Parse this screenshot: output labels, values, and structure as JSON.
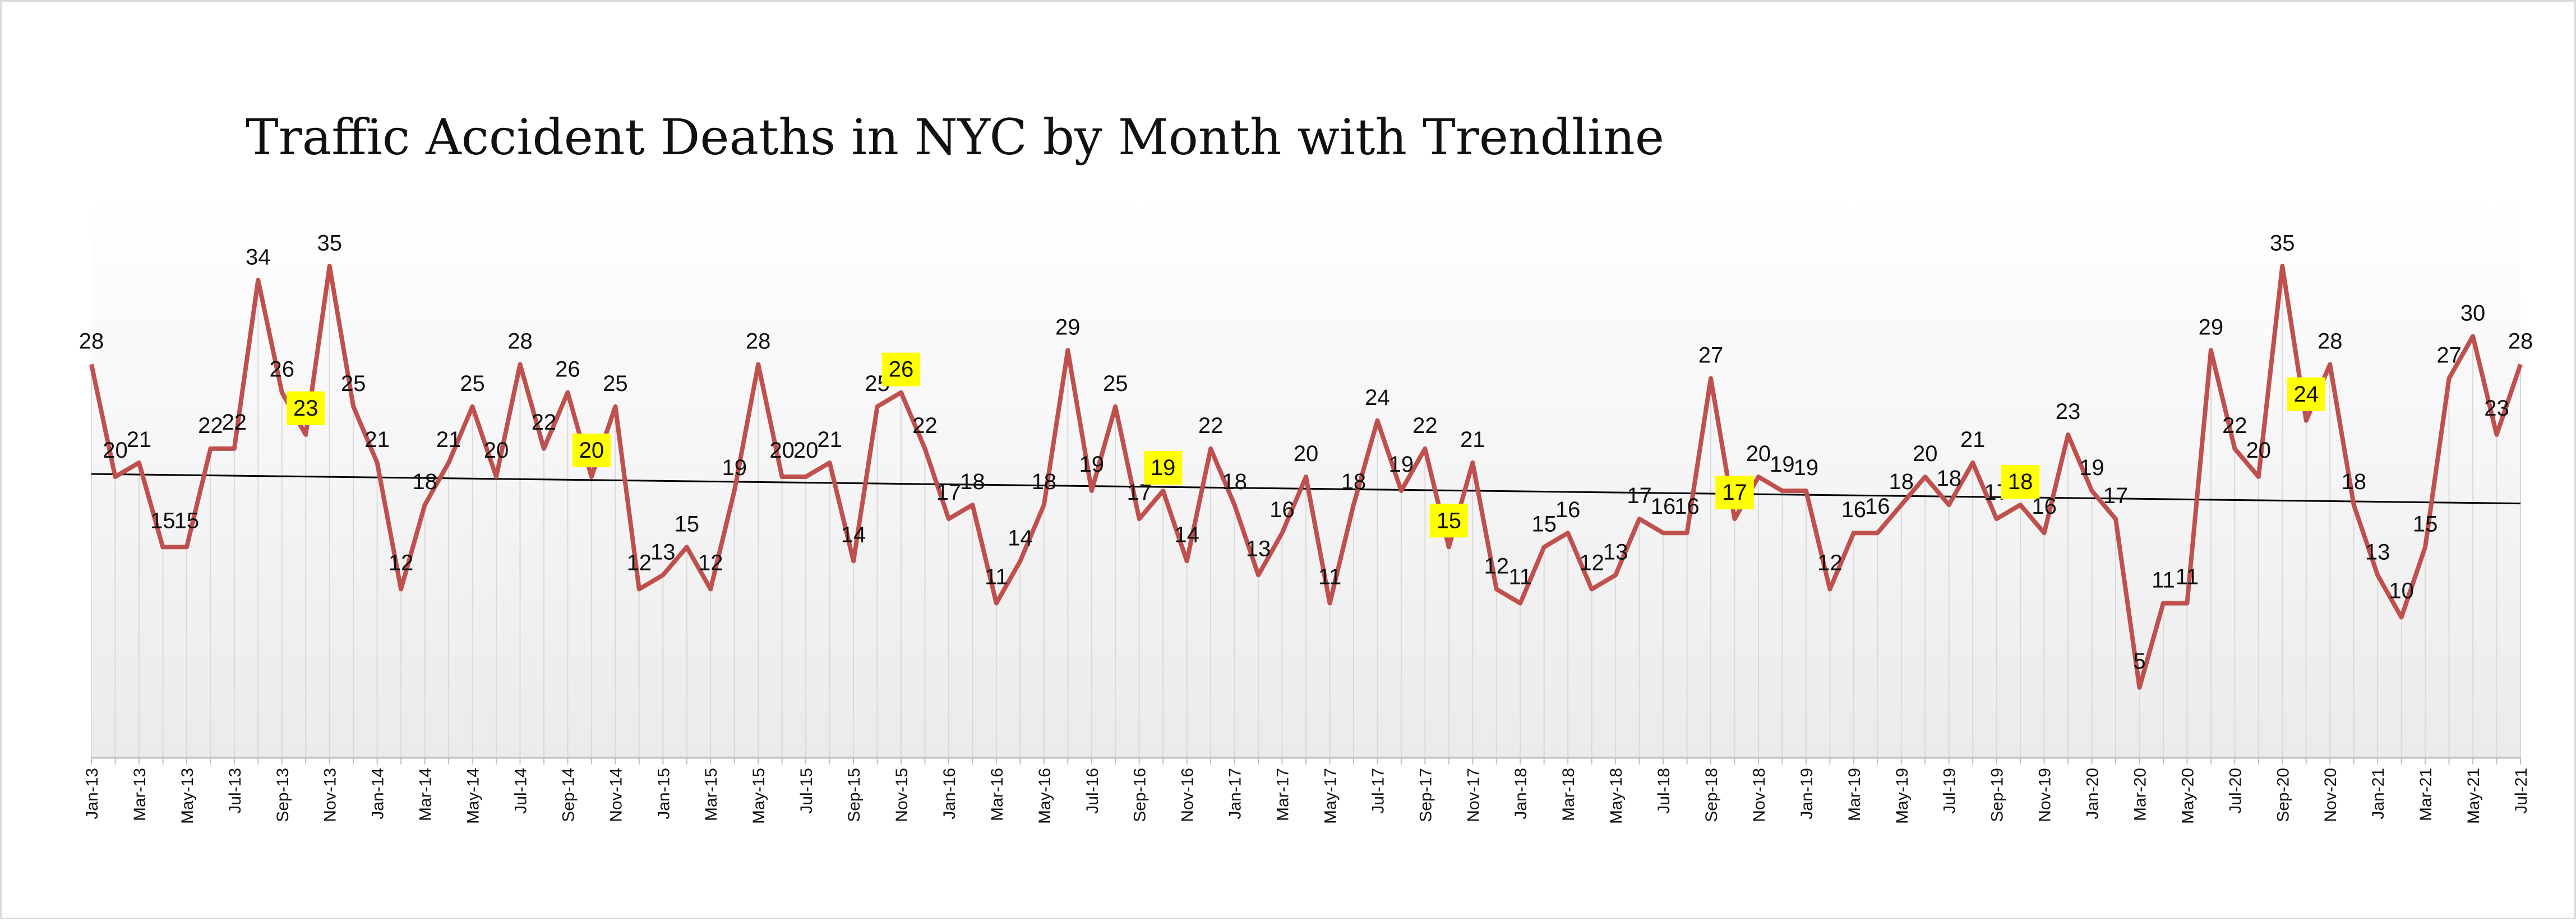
{
  "chart_data": {
    "type": "line",
    "title": "Traffic Accident Deaths in NYC  by Month with  Trendline",
    "xlabel": "",
    "ylabel": "",
    "ylim": [
      0,
      40
    ],
    "grid": false,
    "x": [
      "Jan-13",
      "Feb-13",
      "Mar-13",
      "Apr-13",
      "May-13",
      "Jun-13",
      "Jul-13",
      "Aug-13",
      "Sep-13",
      "Oct-13",
      "Nov-13",
      "Dec-13",
      "Jan-14",
      "Feb-14",
      "Mar-14",
      "Apr-14",
      "May-14",
      "Jun-14",
      "Jul-14",
      "Aug-14",
      "Sep-14",
      "Oct-14",
      "Nov-14",
      "Dec-14",
      "Jan-15",
      "Feb-15",
      "Mar-15",
      "Apr-15",
      "May-15",
      "Jun-15",
      "Jul-15",
      "Aug-15",
      "Sep-15",
      "Oct-15",
      "Nov-15",
      "Dec-15",
      "Jan-16",
      "Feb-16",
      "Mar-16",
      "Apr-16",
      "May-16",
      "Jun-16",
      "Jul-16",
      "Aug-16",
      "Sep-16",
      "Oct-16",
      "Nov-16",
      "Dec-16",
      "Jan-17",
      "Feb-17",
      "Mar-17",
      "Apr-17",
      "May-17",
      "Jun-17",
      "Jul-17",
      "Aug-17",
      "Sep-17",
      "Oct-17",
      "Nov-17",
      "Dec-17",
      "Jan-18",
      "Feb-18",
      "Mar-18",
      "Apr-18",
      "May-18",
      "Jun-18",
      "Jul-18",
      "Aug-18",
      "Sep-18",
      "Oct-18",
      "Nov-18",
      "Dec-18",
      "Jan-19",
      "Feb-19",
      "Mar-19",
      "Apr-19",
      "May-19",
      "Jun-19",
      "Jul-19",
      "Aug-19",
      "Sep-19",
      "Oct-19",
      "Nov-19",
      "Dec-19",
      "Jan-20",
      "Feb-20",
      "Mar-20",
      "Apr-20",
      "May-20",
      "Jun-20",
      "Jul-20",
      "Aug-20",
      "Sep-20",
      "Oct-20",
      "Nov-20",
      "Dec-20",
      "Jan-21",
      "Feb-21",
      "Mar-21",
      "Apr-21",
      "May-21",
      "Jun-21",
      "Jul-21"
    ],
    "tick_labels": [
      "Jan-13",
      "Mar-13",
      "May-13",
      "Jul-13",
      "Sep-13",
      "Nov-13",
      "Jan-14",
      "Mar-14",
      "May-14",
      "Jul-14",
      "Sep-14",
      "Nov-14",
      "Jan-15",
      "Mar-15",
      "May-15",
      "Jul-15",
      "Sep-15",
      "Nov-15",
      "Jan-16",
      "Mar-16",
      "May-16",
      "Jul-16",
      "Sep-16",
      "Nov-16",
      "Jan-17",
      "Mar-17",
      "May-17",
      "Jul-17",
      "Sep-17",
      "Nov-17",
      "Jan-18",
      "Mar-18",
      "May-18",
      "Jul-18",
      "Sep-18",
      "Nov-18",
      "Jan-19",
      "Mar-19",
      "May-19",
      "Jul-19",
      "Sep-19",
      "Nov-19",
      "Jan-20",
      "Mar-20",
      "May-20",
      "Jul-20",
      "Sep-20",
      "Nov-20",
      "Jan-21",
      "Mar-21",
      "May-21",
      "Jul-21"
    ],
    "series": [
      {
        "color": "#c0504d",
        "values": [
          28,
          20,
          21,
          15,
          15,
          22,
          22,
          34,
          26,
          23,
          35,
          25,
          21,
          12,
          18,
          21,
          25,
          20,
          28,
          22,
          26,
          20,
          25,
          12,
          13,
          15,
          12,
          19,
          28,
          20,
          20,
          21,
          14,
          25,
          26,
          22,
          17,
          18,
          11,
          14,
          18,
          29,
          19,
          25,
          17,
          19,
          14,
          22,
          18,
          13,
          16,
          20,
          11,
          18,
          24,
          19,
          22,
          15,
          21,
          12,
          11,
          15,
          16,
          12,
          13,
          17,
          16,
          16,
          27,
          17,
          20,
          19,
          19,
          12,
          16,
          16,
          18,
          20,
          18,
          21,
          17,
          18,
          16,
          23,
          19,
          17,
          5,
          11,
          11,
          29,
          22,
          20,
          35,
          24,
          28,
          18,
          13,
          10,
          15,
          27,
          30,
          23,
          28
        ]
      }
    ],
    "trendline": {
      "color": "#000000",
      "start": 20.2,
      "end": 18.1
    },
    "highlighted_labels": [
      "Oct-13",
      "Oct-14",
      "Nov-15",
      "Oct-16",
      "Oct-17",
      "Oct-18",
      "Oct-19",
      "Oct-20"
    ],
    "highlight_color": "#ffff00"
  }
}
